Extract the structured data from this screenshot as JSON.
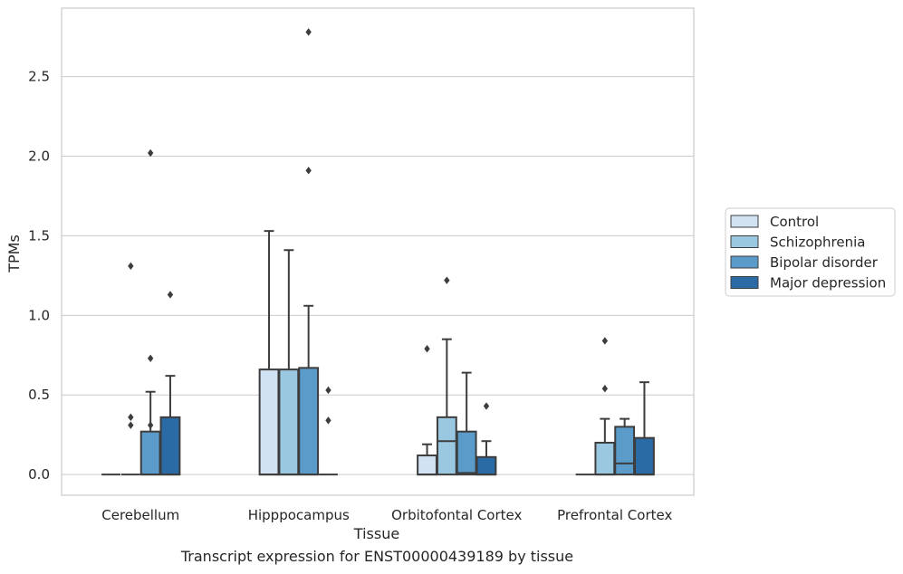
{
  "chart_data": {
    "type": "box",
    "xlabel": "Tissue",
    "ylabel": "TPMs",
    "ylim": [
      -0.13,
      2.93
    ],
    "yticks": [
      0.0,
      0.5,
      1.0,
      1.5,
      2.0,
      2.5
    ],
    "ytick_labels": [
      "0.0",
      "0.5",
      "1.0",
      "1.5",
      "2.0",
      "2.5"
    ],
    "grid": "horizontal",
    "legend_position": "right",
    "categories": [
      "Cerebellum",
      "Hipppocampus",
      "Orbitofontal Cortex",
      "Prefrontal Cortex"
    ],
    "series": [
      {
        "name": "Control",
        "color": "#d1e2f3",
        "boxes": [
          {
            "min": 0.0,
            "q1": 0.0,
            "median": 0.0,
            "q3": 0.0,
            "max": 0.0,
            "outliers": []
          },
          {
            "min": 0.0,
            "q1": 0.0,
            "median": 0.0,
            "q3": 0.66,
            "max": 1.53,
            "outliers": []
          },
          {
            "min": 0.0,
            "q1": 0.0,
            "median": 0.0,
            "q3": 0.12,
            "max": 0.19,
            "outliers": [
              0.79
            ]
          },
          {
            "min": 0.0,
            "q1": 0.0,
            "median": 0.0,
            "q3": 0.0,
            "max": 0.0,
            "outliers": []
          }
        ]
      },
      {
        "name": "Schizophrenia",
        "color": "#9ac8e0",
        "boxes": [
          {
            "min": 0.0,
            "q1": 0.0,
            "median": 0.0,
            "q3": 0.0,
            "max": 0.0,
            "outliers": [
              0.31,
              0.36,
              1.31
            ]
          },
          {
            "min": 0.0,
            "q1": 0.0,
            "median": 0.0,
            "q3": 0.66,
            "max": 1.41,
            "outliers": []
          },
          {
            "min": 0.0,
            "q1": 0.0,
            "median": 0.21,
            "q3": 0.36,
            "max": 0.85,
            "outliers": [
              1.22
            ]
          },
          {
            "min": 0.0,
            "q1": 0.0,
            "median": 0.0,
            "q3": 0.2,
            "max": 0.35,
            "outliers": [
              0.54,
              0.84
            ]
          }
        ]
      },
      {
        "name": "Bipolar disorder",
        "color": "#5a9bc9",
        "boxes": [
          {
            "min": 0.0,
            "q1": 0.0,
            "median": 0.0,
            "q3": 0.27,
            "max": 0.52,
            "outliers": [
              0.31,
              2.02,
              0.73
            ]
          },
          {
            "min": 0.0,
            "q1": 0.0,
            "median": 0.0,
            "q3": 0.67,
            "max": 1.06,
            "outliers": [
              1.91,
              2.78
            ]
          },
          {
            "min": 0.0,
            "q1": 0.0,
            "median": 0.01,
            "q3": 0.27,
            "max": 0.64,
            "outliers": []
          },
          {
            "min": 0.0,
            "q1": 0.0,
            "median": 0.07,
            "q3": 0.3,
            "max": 0.35,
            "outliers": []
          }
        ]
      },
      {
        "name": "Major depression",
        "color": "#2b6ba5",
        "boxes": [
          {
            "min": 0.0,
            "q1": 0.0,
            "median": 0.0,
            "q3": 0.36,
            "max": 0.62,
            "outliers": [
              1.13
            ]
          },
          {
            "min": 0.0,
            "q1": 0.0,
            "median": 0.0,
            "q3": 0.0,
            "max": 0.0,
            "outliers": [
              0.34,
              0.53
            ]
          },
          {
            "min": 0.0,
            "q1": 0.0,
            "median": 0.0,
            "q3": 0.11,
            "max": 0.21,
            "outliers": [
              0.43
            ]
          },
          {
            "min": 0.0,
            "q1": 0.0,
            "median": 0.0,
            "q3": 0.23,
            "max": 0.58,
            "outliers": []
          }
        ]
      }
    ]
  },
  "caption": "Transcript expression for ENST00000439189 by tissue"
}
